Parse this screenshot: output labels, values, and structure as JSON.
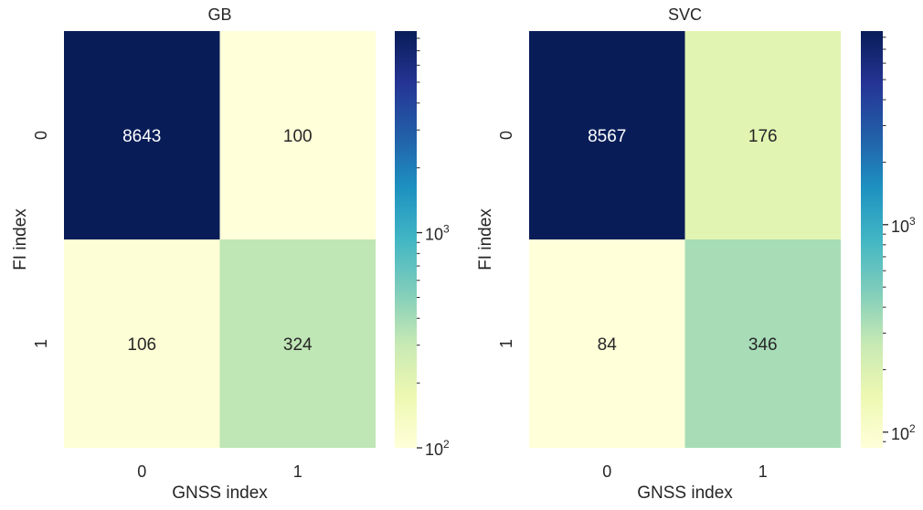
{
  "chart_data": [
    {
      "type": "heatmap",
      "title": "GB",
      "xlabel": "GNSS index",
      "ylabel": "FI index",
      "x_categories": [
        "0",
        "1"
      ],
      "y_categories": [
        "0",
        "1"
      ],
      "values": [
        [
          8643,
          100
        ],
        [
          106,
          324
        ]
      ],
      "colorbar": {
        "scale": "log",
        "range": [
          100,
          8643
        ],
        "major_ticks": [
          {
            "value": 1000,
            "label": "10",
            "exp": "3"
          },
          {
            "value": 100,
            "label": "10",
            "exp": "2"
          }
        ]
      },
      "colormap": "YlGnBu"
    },
    {
      "type": "heatmap",
      "title": "SVC",
      "xlabel": "GNSS index",
      "ylabel": "FI index",
      "x_categories": [
        "0",
        "1"
      ],
      "y_categories": [
        "0",
        "1"
      ],
      "values": [
        [
          8567,
          176
        ],
        [
          84,
          346
        ]
      ],
      "colorbar": {
        "scale": "log",
        "range": [
          84,
          8567
        ],
        "major_ticks": [
          {
            "value": 1000,
            "label": "10",
            "exp": "3"
          },
          {
            "value": 100,
            "label": "10",
            "exp": "2"
          }
        ]
      },
      "colormap": "YlGnBu"
    }
  ]
}
